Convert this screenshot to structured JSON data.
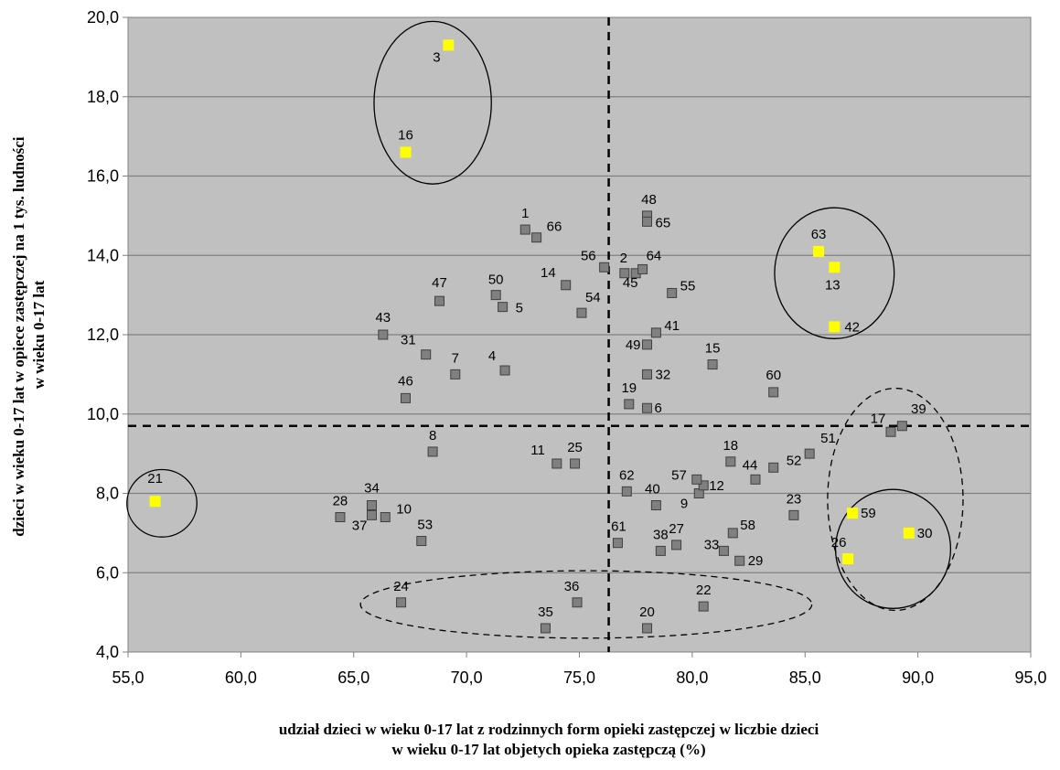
{
  "chart_data": {
    "type": "scatter",
    "xlabel_lines": [
      "udział dzieci w wieku 0-17 lat z rodzinnych form opieki zastępczej w liczbie dzieci",
      "w wieku 0-17 lat objetych opieka zastępczą (%)"
    ],
    "ylabel_lines": [
      "dzieci w wieku 0-17 lat w opiece zastępczej na 1 tys. ludności",
      "w wieku 0-17 lat"
    ],
    "xlim": [
      55,
      95
    ],
    "ylim": [
      4,
      20
    ],
    "x_ticks": [
      "55,0",
      "60,0",
      "65,0",
      "70,0",
      "75,0",
      "80,0",
      "85,0",
      "90,0",
      "95,0"
    ],
    "y_ticks": [
      "4,0",
      "6,0",
      "8,0",
      "10,0",
      "12,0",
      "14,0",
      "16,0",
      "18,0",
      "20,0"
    ],
    "grid": "horizontal",
    "plot_background": "#c0c0c0",
    "colors": {
      "default": "#808080",
      "highlight": "#ffff00"
    },
    "reference_lines": {
      "x": 76.3,
      "y": 9.7
    },
    "points": [
      {
        "label": "1",
        "x": 72.6,
        "y": 14.65,
        "h": false
      },
      {
        "label": "2",
        "x": 77.0,
        "y": 13.55,
        "h": false
      },
      {
        "label": "3",
        "x": 69.2,
        "y": 19.3,
        "h": true
      },
      {
        "label": "4",
        "x": 71.7,
        "y": 11.1,
        "h": false
      },
      {
        "label": "5",
        "x": 71.6,
        "y": 12.7,
        "h": false
      },
      {
        "label": "6",
        "x": 78.0,
        "y": 10.15,
        "h": false
      },
      {
        "label": "7",
        "x": 69.5,
        "y": 11.0,
        "h": false
      },
      {
        "label": "8",
        "x": 68.5,
        "y": 9.05,
        "h": false
      },
      {
        "label": "9",
        "x": 80.3,
        "y": 8.0,
        "h": false
      },
      {
        "label": "10",
        "x": 66.4,
        "y": 7.4,
        "h": false
      },
      {
        "label": "11",
        "x": 74.0,
        "y": 8.75,
        "h": false
      },
      {
        "label": "12",
        "x": 80.5,
        "y": 8.2,
        "h": false
      },
      {
        "label": "13",
        "x": 86.3,
        "y": 13.7,
        "h": true
      },
      {
        "label": "14",
        "x": 74.4,
        "y": 13.25,
        "h": false
      },
      {
        "label": "15",
        "x": 80.9,
        "y": 11.25,
        "h": false
      },
      {
        "label": "16",
        "x": 67.3,
        "y": 16.6,
        "h": true
      },
      {
        "label": "17",
        "x": 88.8,
        "y": 9.55,
        "h": false
      },
      {
        "label": "18",
        "x": 81.7,
        "y": 8.8,
        "h": false
      },
      {
        "label": "19",
        "x": 77.2,
        "y": 10.25,
        "h": false
      },
      {
        "label": "20",
        "x": 78.0,
        "y": 4.6,
        "h": false
      },
      {
        "label": "21",
        "x": 56.2,
        "y": 7.8,
        "h": true
      },
      {
        "label": "22",
        "x": 80.5,
        "y": 5.15,
        "h": false
      },
      {
        "label": "23",
        "x": 84.5,
        "y": 7.45,
        "h": false
      },
      {
        "label": "24",
        "x": 67.1,
        "y": 5.25,
        "h": false
      },
      {
        "label": "25",
        "x": 74.8,
        "y": 8.75,
        "h": false
      },
      {
        "label": "26",
        "x": 86.9,
        "y": 6.35,
        "h": true
      },
      {
        "label": "27",
        "x": 79.3,
        "y": 6.7,
        "h": false
      },
      {
        "label": "28",
        "x": 64.4,
        "y": 7.4,
        "h": false
      },
      {
        "label": "29",
        "x": 82.1,
        "y": 6.3,
        "h": false
      },
      {
        "label": "30",
        "x": 89.6,
        "y": 7.0,
        "h": true
      },
      {
        "label": "31",
        "x": 68.2,
        "y": 11.5,
        "h": false
      },
      {
        "label": "32",
        "x": 78.0,
        "y": 11.0,
        "h": false
      },
      {
        "label": "33",
        "x": 81.4,
        "y": 6.55,
        "h": false
      },
      {
        "label": "34",
        "x": 65.8,
        "y": 7.7,
        "h": false
      },
      {
        "label": "35",
        "x": 73.5,
        "y": 4.6,
        "h": false
      },
      {
        "label": "36",
        "x": 74.9,
        "y": 5.25,
        "h": false
      },
      {
        "label": "37",
        "x": 65.8,
        "y": 7.45,
        "h": false
      },
      {
        "label": "38",
        "x": 78.6,
        "y": 6.55,
        "h": false
      },
      {
        "label": "39",
        "x": 89.3,
        "y": 9.7,
        "h": false
      },
      {
        "label": "40",
        "x": 78.4,
        "y": 7.7,
        "h": false
      },
      {
        "label": "41",
        "x": 78.4,
        "y": 12.05,
        "h": false
      },
      {
        "label": "42",
        "x": 86.3,
        "y": 12.2,
        "h": true
      },
      {
        "label": "43",
        "x": 66.3,
        "y": 12.0,
        "h": false
      },
      {
        "label": "44",
        "x": 82.8,
        "y": 8.35,
        "h": false
      },
      {
        "label": "45",
        "x": 77.5,
        "y": 13.55,
        "h": false
      },
      {
        "label": "46",
        "x": 67.3,
        "y": 10.4,
        "h": false
      },
      {
        "label": "47",
        "x": 68.8,
        "y": 12.85,
        "h": false
      },
      {
        "label": "48",
        "x": 78.0,
        "y": 15.0,
        "h": false
      },
      {
        "label": "49",
        "x": 78.0,
        "y": 11.75,
        "h": false
      },
      {
        "label": "50",
        "x": 71.3,
        "y": 13.0,
        "h": false
      },
      {
        "label": "51",
        "x": 85.2,
        "y": 9.0,
        "h": false
      },
      {
        "label": "52",
        "x": 83.6,
        "y": 8.65,
        "h": false
      },
      {
        "label": "53",
        "x": 68.0,
        "y": 6.8,
        "h": false
      },
      {
        "label": "54",
        "x": 75.1,
        "y": 12.55,
        "h": false
      },
      {
        "label": "55",
        "x": 79.1,
        "y": 13.05,
        "h": false
      },
      {
        "label": "56",
        "x": 76.1,
        "y": 13.7,
        "h": false
      },
      {
        "label": "57",
        "x": 80.2,
        "y": 8.35,
        "h": false
      },
      {
        "label": "58",
        "x": 81.8,
        "y": 7.0,
        "h": false
      },
      {
        "label": "59",
        "x": 87.1,
        "y": 7.5,
        "h": true
      },
      {
        "label": "60",
        "x": 83.6,
        "y": 10.55,
        "h": false
      },
      {
        "label": "61",
        "x": 76.7,
        "y": 6.75,
        "h": false
      },
      {
        "label": "62",
        "x": 77.1,
        "y": 8.05,
        "h": false
      },
      {
        "label": "63",
        "x": 85.6,
        "y": 14.1,
        "h": true
      },
      {
        "label": "64",
        "x": 77.8,
        "y": 13.65,
        "h": false
      },
      {
        "label": "65",
        "x": 78.0,
        "y": 14.85,
        "h": false
      },
      {
        "label": "66",
        "x": 73.1,
        "y": 14.45,
        "h": false
      }
    ],
    "annotations": [
      {
        "type": "ellipse",
        "style": "solid",
        "cx": 68.5,
        "cy": 17.85,
        "rx": 2.6,
        "ry": 2.05
      },
      {
        "type": "ellipse",
        "style": "solid",
        "cx": 86.3,
        "cy": 13.55,
        "rx": 2.65,
        "ry": 1.65
      },
      {
        "type": "ellipse",
        "style": "solid",
        "cx": 56.5,
        "cy": 7.75,
        "rx": 1.55,
        "ry": 0.85
      },
      {
        "type": "ellipse",
        "style": "solid",
        "cx": 88.9,
        "cy": 6.6,
        "rx": 2.55,
        "ry": 1.5
      },
      {
        "type": "ellipse",
        "style": "dashed",
        "cx": 89.0,
        "cy": 7.85,
        "rx": 3.0,
        "ry": 2.8
      },
      {
        "type": "ellipse",
        "style": "dashed",
        "cx": 75.3,
        "cy": 5.2,
        "rx": 10.0,
        "ry": 0.85
      }
    ]
  }
}
